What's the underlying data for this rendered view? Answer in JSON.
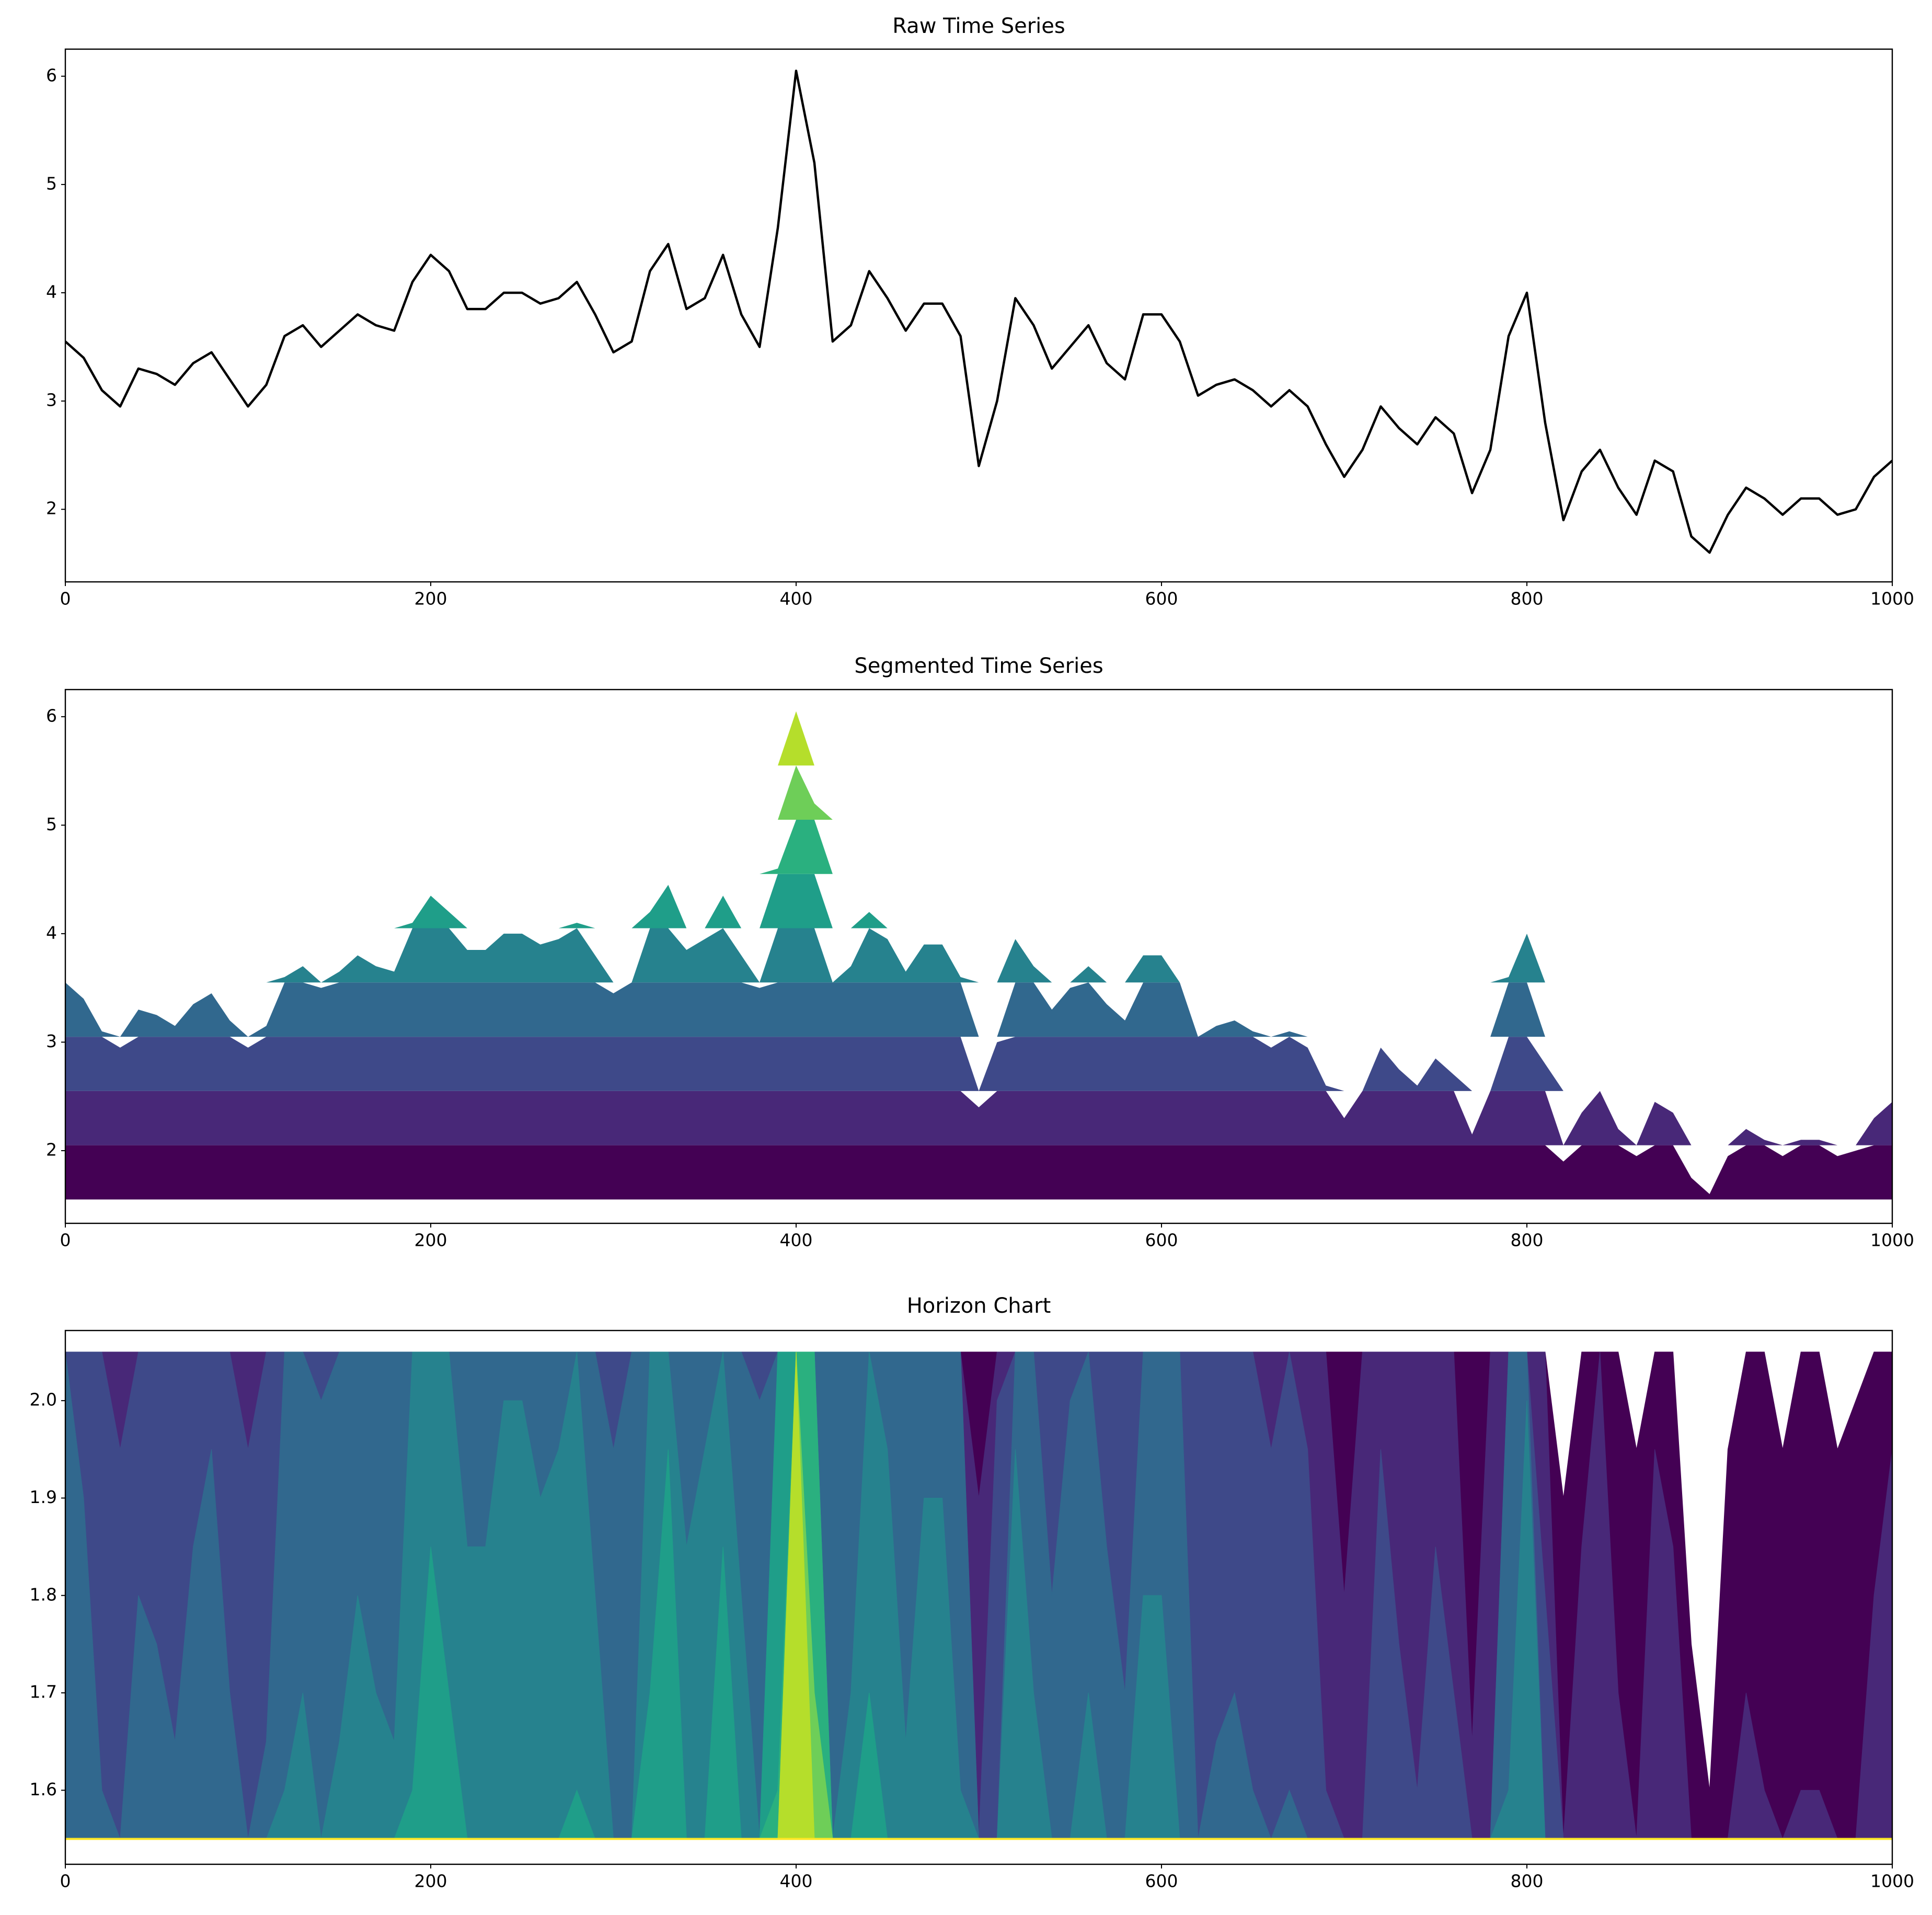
{
  "chart_data": [
    {
      "type": "line",
      "title": "Raw Time Series",
      "color": "#000000",
      "x": [
        0,
        10,
        20,
        30,
        40,
        50,
        60,
        70,
        80,
        90,
        100,
        110,
        120,
        130,
        140,
        150,
        160,
        170,
        180,
        190,
        200,
        210,
        220,
        230,
        240,
        250,
        260,
        270,
        280,
        290,
        300,
        310,
        320,
        330,
        340,
        350,
        360,
        370,
        380,
        390,
        400,
        410,
        420,
        430,
        440,
        450,
        460,
        470,
        480,
        490,
        500,
        510,
        520,
        530,
        540,
        550,
        560,
        570,
        580,
        590,
        600,
        610,
        620,
        630,
        640,
        650,
        660,
        670,
        680,
        690,
        700,
        710,
        720,
        730,
        740,
        750,
        760,
        770,
        780,
        790,
        800,
        810,
        820,
        830,
        840,
        850,
        860,
        870,
        880,
        890,
        900,
        910,
        920,
        930,
        940,
        950,
        960,
        970,
        980,
        990,
        1000
      ],
      "values": [
        3.55,
        3.4,
        3.1,
        2.95,
        3.3,
        3.25,
        3.15,
        3.35,
        3.45,
        3.2,
        2.95,
        3.15,
        3.6,
        3.7,
        3.5,
        3.65,
        3.8,
        3.7,
        3.65,
        4.1,
        4.35,
        4.2,
        3.85,
        3.85,
        4.0,
        4.0,
        3.9,
        3.95,
        4.1,
        3.8,
        3.45,
        3.55,
        4.2,
        4.45,
        3.85,
        3.95,
        4.35,
        3.8,
        3.5,
        4.6,
        6.05,
        5.2,
        3.55,
        3.7,
        4.2,
        3.95,
        3.65,
        3.9,
        3.9,
        3.6,
        2.4,
        3.0,
        3.95,
        3.7,
        3.3,
        3.5,
        3.7,
        3.35,
        3.2,
        3.8,
        3.8,
        3.55,
        3.05,
        3.15,
        3.2,
        3.1,
        2.95,
        3.1,
        2.95,
        2.6,
        2.3,
        2.55,
        2.95,
        2.75,
        2.6,
        2.85,
        2.7,
        2.15,
        2.55,
        3.6,
        4.0,
        2.8,
        1.9,
        2.35,
        2.55,
        2.2,
        1.95,
        2.45,
        2.35,
        1.75,
        1.6,
        1.95,
        2.2,
        2.1,
        1.95,
        2.1,
        2.1,
        1.95,
        2.0,
        2.3,
        2.45
      ],
      "xlim": [
        0,
        1000
      ],
      "xticks": [
        0,
        200,
        400,
        600,
        800,
        1000
      ],
      "ylim": [
        1.33,
        6.25
      ],
      "yticks": [
        2,
        3,
        4,
        5,
        6
      ]
    },
    {
      "type": "segmented",
      "title": "Segmented Time Series",
      "band_base": 1.55,
      "band_width": 0.5,
      "band_colors": [
        "#440154",
        "#482878",
        "#3e4989",
        "#31688e",
        "#26828e",
        "#1f9e89",
        "#2ab07f",
        "#6ece58",
        "#b5de2b",
        "#fde725"
      ],
      "x": [
        0,
        10,
        20,
        30,
        40,
        50,
        60,
        70,
        80,
        90,
        100,
        110,
        120,
        130,
        140,
        150,
        160,
        170,
        180,
        190,
        200,
        210,
        220,
        230,
        240,
        250,
        260,
        270,
        280,
        290,
        300,
        310,
        320,
        330,
        340,
        350,
        360,
        370,
        380,
        390,
        400,
        410,
        420,
        430,
        440,
        450,
        460,
        470,
        480,
        490,
        500,
        510,
        520,
        530,
        540,
        550,
        560,
        570,
        580,
        590,
        600,
        610,
        620,
        630,
        640,
        650,
        660,
        670,
        680,
        690,
        700,
        710,
        720,
        730,
        740,
        750,
        760,
        770,
        780,
        790,
        800,
        810,
        820,
        830,
        840,
        850,
        860,
        870,
        880,
        890,
        900,
        910,
        920,
        930,
        940,
        950,
        960,
        970,
        980,
        990,
        1000
      ],
      "values": [
        3.55,
        3.4,
        3.1,
        2.95,
        3.3,
        3.25,
        3.15,
        3.35,
        3.45,
        3.2,
        2.95,
        3.15,
        3.6,
        3.7,
        3.5,
        3.65,
        3.8,
        3.7,
        3.65,
        4.1,
        4.35,
        4.2,
        3.85,
        3.85,
        4.0,
        4.0,
        3.9,
        3.95,
        4.1,
        3.8,
        3.45,
        3.55,
        4.2,
        4.45,
        3.85,
        3.95,
        4.35,
        3.8,
        3.5,
        4.6,
        6.05,
        5.2,
        3.55,
        3.7,
        4.2,
        3.95,
        3.65,
        3.9,
        3.9,
        3.6,
        2.4,
        3.0,
        3.95,
        3.7,
        3.3,
        3.5,
        3.7,
        3.35,
        3.2,
        3.8,
        3.8,
        3.55,
        3.05,
        3.15,
        3.2,
        3.1,
        2.95,
        3.1,
        2.95,
        2.6,
        2.3,
        2.55,
        2.95,
        2.75,
        2.6,
        2.85,
        2.7,
        2.15,
        2.55,
        3.6,
        4.0,
        2.8,
        1.9,
        2.35,
        2.55,
        2.2,
        1.95,
        2.45,
        2.35,
        1.75,
        1.6,
        1.95,
        2.2,
        2.1,
        1.95,
        2.1,
        2.1,
        1.95,
        2.0,
        2.3,
        2.45
      ],
      "xlim": [
        0,
        1000
      ],
      "xticks": [
        0,
        200,
        400,
        600,
        800,
        1000
      ],
      "ylim": [
        1.33,
        6.25
      ],
      "yticks": [
        2,
        3,
        4,
        5,
        6
      ]
    },
    {
      "type": "horizon",
      "title": "Horizon Chart",
      "band_base": 1.55,
      "band_width": 0.5,
      "band_colors": [
        "#440154",
        "#482878",
        "#3e4989",
        "#31688e",
        "#26828e",
        "#1f9e89",
        "#2ab07f",
        "#6ece58",
        "#b5de2b",
        "#fde725"
      ],
      "x": [
        0,
        10,
        20,
        30,
        40,
        50,
        60,
        70,
        80,
        90,
        100,
        110,
        120,
        130,
        140,
        150,
        160,
        170,
        180,
        190,
        200,
        210,
        220,
        230,
        240,
        250,
        260,
        270,
        280,
        290,
        300,
        310,
        320,
        330,
        340,
        350,
        360,
        370,
        380,
        390,
        400,
        410,
        420,
        430,
        440,
        450,
        460,
        470,
        480,
        490,
        500,
        510,
        520,
        530,
        540,
        550,
        560,
        570,
        580,
        590,
        600,
        610,
        620,
        630,
        640,
        650,
        660,
        670,
        680,
        690,
        700,
        710,
        720,
        730,
        740,
        750,
        760,
        770,
        780,
        790,
        800,
        810,
        820,
        830,
        840,
        850,
        860,
        870,
        880,
        890,
        900,
        910,
        920,
        930,
        940,
        950,
        960,
        970,
        980,
        990,
        1000
      ],
      "values": [
        3.55,
        3.4,
        3.1,
        2.95,
        3.3,
        3.25,
        3.15,
        3.35,
        3.45,
        3.2,
        2.95,
        3.15,
        3.6,
        3.7,
        3.5,
        3.65,
        3.8,
        3.7,
        3.65,
        4.1,
        4.35,
        4.2,
        3.85,
        3.85,
        4.0,
        4.0,
        3.9,
        3.95,
        4.1,
        3.8,
        3.45,
        3.55,
        4.2,
        4.45,
        3.85,
        3.95,
        4.35,
        3.8,
        3.5,
        4.6,
        6.05,
        5.2,
        3.55,
        3.7,
        4.2,
        3.95,
        3.65,
        3.9,
        3.9,
        3.6,
        2.4,
        3.0,
        3.95,
        3.7,
        3.3,
        3.5,
        3.7,
        3.35,
        3.2,
        3.8,
        3.8,
        3.55,
        3.05,
        3.15,
        3.2,
        3.1,
        2.95,
        3.1,
        2.95,
        2.6,
        2.3,
        2.55,
        2.95,
        2.75,
        2.6,
        2.85,
        2.7,
        2.15,
        2.55,
        3.6,
        4.0,
        2.8,
        1.9,
        2.35,
        2.55,
        2.2,
        1.95,
        2.45,
        2.35,
        1.75,
        1.6,
        1.95,
        2.2,
        2.1,
        1.95,
        2.1,
        2.1,
        1.95,
        2.0,
        2.3,
        2.45
      ],
      "xlim": [
        0,
        1000
      ],
      "xticks": [
        0,
        200,
        400,
        600,
        800,
        1000
      ],
      "ylim": [
        1.524,
        2.072
      ],
      "yticks": [
        1.6,
        1.7,
        1.8,
        1.9,
        {
          "value": 2,
          "label": "2.0"
        }
      ]
    }
  ]
}
